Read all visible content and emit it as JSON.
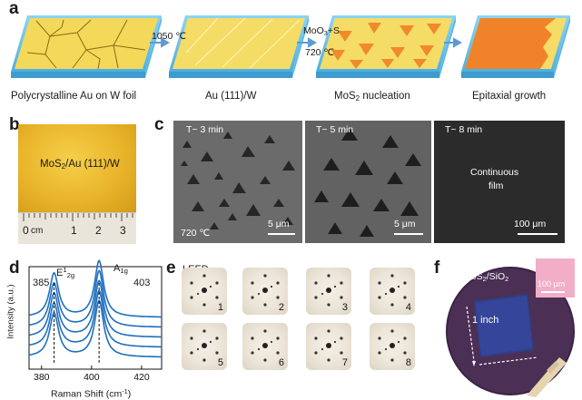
{
  "panel_a": {
    "label": "a",
    "step1_temp": "1050 ℃",
    "step2_reagents": "MoO3+S",
    "step2_temp": "720 ℃",
    "captions": [
      "Polycrystalline Au on W foil",
      "Au (111)/W",
      "MoS2 nucleation",
      "Epitaxial growth"
    ]
  },
  "panel_b": {
    "label": "b",
    "sample_label": "MoS2/Au (111)/W",
    "ruler_labels": [
      "0",
      "cm",
      "1",
      "2",
      "3"
    ]
  },
  "panel_c": {
    "label": "c",
    "images": [
      {
        "time": "T~ 3 min",
        "temp": "720 ℃",
        "scale": "5 μm"
      },
      {
        "time": "T~ 5 min",
        "scale": "5 μm"
      },
      {
        "time": "T~ 8 min",
        "center_text": [
          "Continuous",
          "film"
        ],
        "scale": "100 μm"
      }
    ]
  },
  "panel_d": {
    "label": "d",
    "ylabel": "Intensity (a.u.)",
    "xlabel": "Raman Shift (cm⁻¹)",
    "peak_E": "E12g",
    "peak_A": "A1g",
    "peak_E_pos": "385",
    "peak_A_pos": "403"
  },
  "panel_e": {
    "label": "e",
    "title": "LEED",
    "numbers": [
      "1",
      "2",
      "3",
      "4",
      "5",
      "6",
      "7",
      "8"
    ]
  },
  "panel_f": {
    "label": "f",
    "film_label": "MoS2/SiO2",
    "inset_scale": "100 μm",
    "size_label": "1 inch"
  },
  "chart_data": {
    "type": "line",
    "title": "",
    "xlabel": "Raman Shift (cm⁻¹)",
    "ylabel": "Intensity (a.u.)",
    "xlim": [
      375,
      428
    ],
    "xticks": [
      380,
      400,
      420
    ],
    "peaks": [
      {
        "name": "E12g",
        "position": 385
      },
      {
        "name": "A1g",
        "position": 403
      }
    ],
    "n_spectra": 5,
    "color": "#1f6fbf"
  }
}
